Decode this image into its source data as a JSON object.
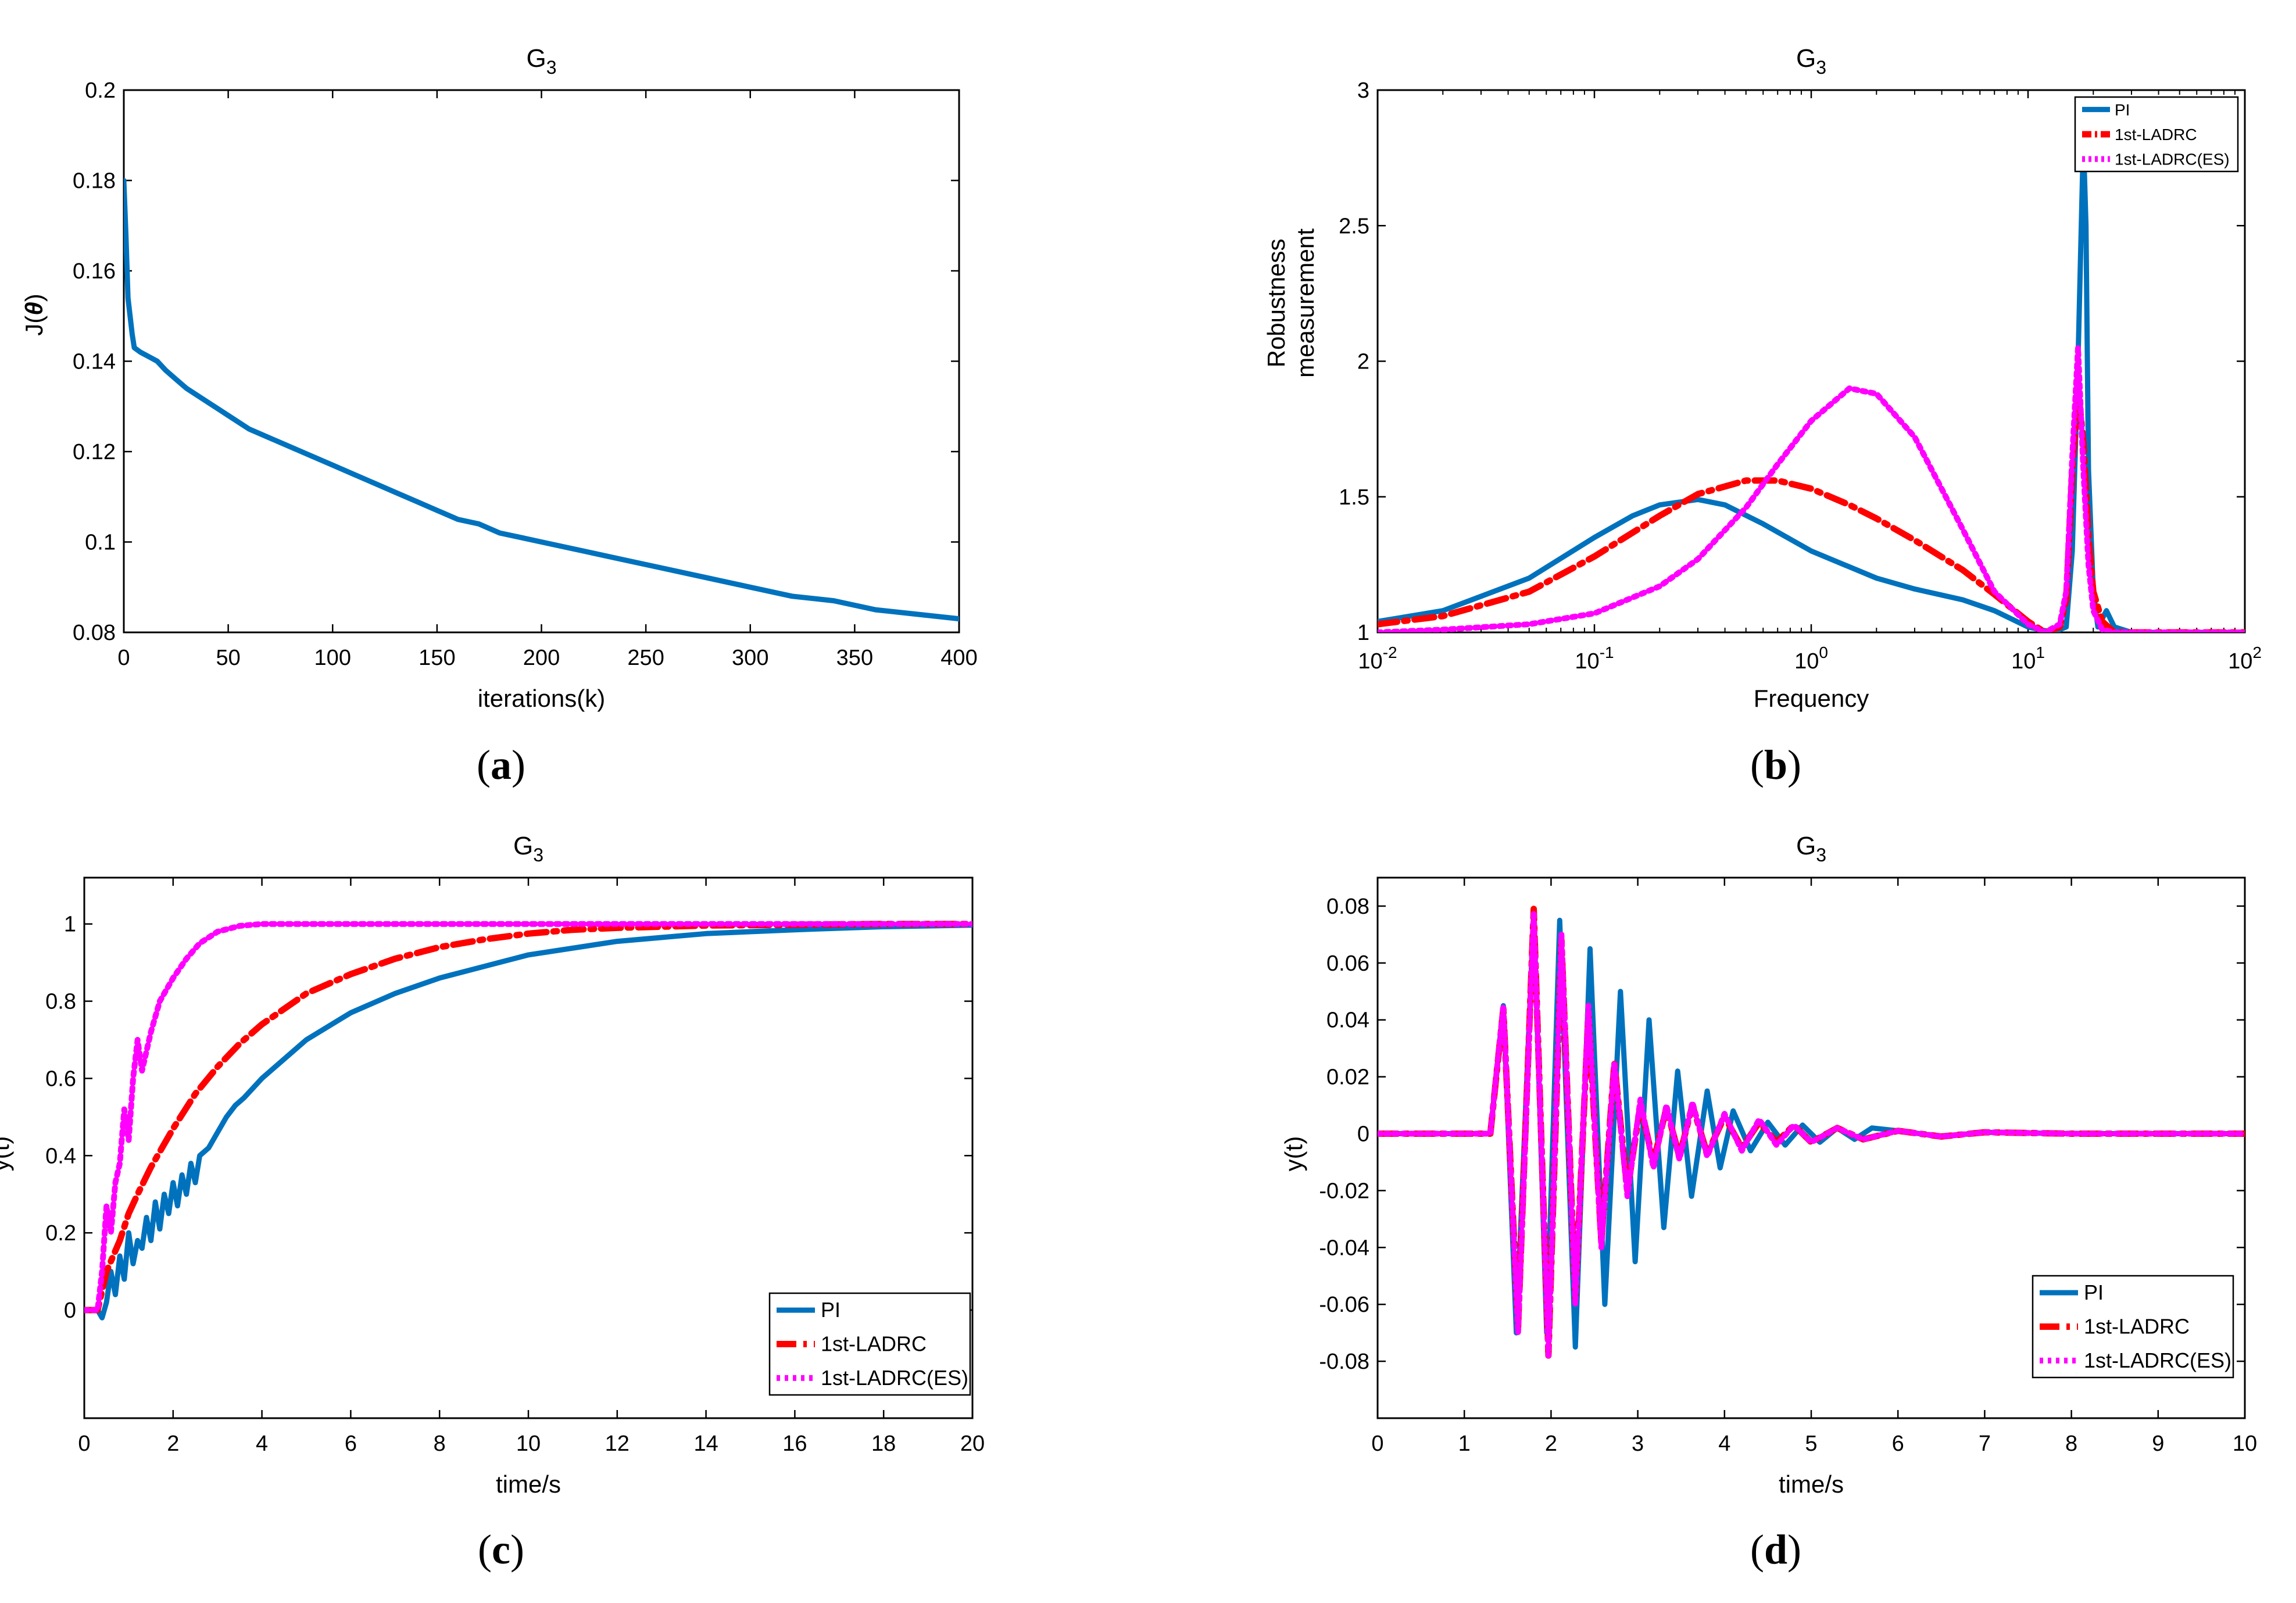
{
  "colors": {
    "pi": "#0072BD",
    "ladrc": "#FF0000",
    "es": "#FF00FF"
  },
  "chart_data": [
    {
      "id": "a",
      "type": "line",
      "caption_letter": "a",
      "title_main": "G",
      "title_sub": "3",
      "xlabel": "iterations(k)",
      "ylabel_prefix": "J(",
      "ylabel_theta": "θ",
      "ylabel_suffix": ")",
      "xlim": [
        0,
        400
      ],
      "ylim": [
        0.08,
        0.2
      ],
      "xticks": [
        0,
        50,
        100,
        150,
        200,
        250,
        300,
        350,
        400
      ],
      "xtick_labels": [
        "0",
        "50",
        "100",
        "150",
        "200",
        "250",
        "300",
        "350",
        "400"
      ],
      "yticks": [
        0.08,
        0.1,
        0.12,
        0.14,
        0.16,
        0.18,
        0.2
      ],
      "ytick_labels": [
        "0.08",
        "0.1",
        "0.12",
        "0.14",
        "0.16",
        "0.18",
        "0.2"
      ],
      "series": [
        {
          "name": "J",
          "color_key": "pi",
          "x": [
            0,
            1,
            2,
            3,
            4,
            5,
            8,
            12,
            16,
            20,
            25,
            30,
            40,
            50,
            60,
            70,
            80,
            90,
            100,
            110,
            120,
            130,
            140,
            150,
            160,
            170,
            180,
            190,
            200,
            220,
            240,
            260,
            280,
            300,
            320,
            340,
            360,
            380,
            400
          ],
          "y": [
            0.18,
            0.168,
            0.154,
            0.15,
            0.146,
            0.143,
            0.142,
            0.141,
            0.14,
            0.138,
            0.136,
            0.134,
            0.131,
            0.128,
            0.125,
            0.123,
            0.121,
            0.119,
            0.117,
            0.115,
            0.113,
            0.111,
            0.109,
            0.107,
            0.105,
            0.104,
            0.102,
            0.101,
            0.1,
            0.098,
            0.096,
            0.094,
            0.092,
            0.09,
            0.088,
            0.087,
            0.085,
            0.084,
            0.083
          ]
        }
      ]
    },
    {
      "id": "b",
      "type": "line",
      "caption_letter": "b",
      "title_main": "G",
      "title_sub": "3",
      "xlabel": "Frequency",
      "ylabel_lines": [
        "Robustness",
        "measurement"
      ],
      "xscale": "log",
      "xlim": [
        0.01,
        100
      ],
      "ylim": [
        1,
        3
      ],
      "xticks": [
        0.01,
        0.1,
        1,
        10,
        100
      ],
      "xtick_base": "10",
      "xtick_exps": [
        "-2",
        "-1",
        "0",
        "1",
        "2"
      ],
      "yticks": [
        1,
        1.5,
        2,
        2.5,
        3
      ],
      "ytick_labels": [
        "1",
        "1.5",
        "2",
        "2.5",
        "3"
      ],
      "legend": {
        "position": "top-right",
        "entries": [
          "PI",
          "1st-LADRC",
          "1st-LADRC(ES)"
        ]
      },
      "series": [
        {
          "name": "PI",
          "color_key": "pi",
          "dash": "solid",
          "x": [
            0.01,
            0.02,
            0.05,
            0.1,
            0.15,
            0.2,
            0.3,
            0.4,
            0.6,
            1,
            2,
            3,
            5,
            7,
            10,
            13,
            15,
            16,
            17,
            18,
            18.5,
            19,
            20,
            21,
            23,
            25,
            30,
            40,
            50,
            100
          ],
          "y": [
            1.04,
            1.08,
            1.2,
            1.35,
            1.43,
            1.47,
            1.49,
            1.47,
            1.4,
            1.3,
            1.2,
            1.16,
            1.12,
            1.08,
            1.02,
            1.0,
            1.02,
            1.3,
            2.0,
            2.82,
            2.5,
            1.6,
            1.15,
            1.02,
            1.08,
            1.02,
            1.0,
            1.0,
            1.0,
            1.0
          ]
        },
        {
          "name": "1st-LADRC",
          "color_key": "ladrc",
          "dash": "dashdot",
          "x": [
            0.01,
            0.02,
            0.05,
            0.1,
            0.2,
            0.3,
            0.5,
            0.7,
            1,
            1.5,
            2,
            3,
            5,
            7,
            10,
            12,
            14,
            15,
            16,
            17,
            18,
            19,
            20,
            22,
            25,
            30,
            50,
            100
          ],
          "y": [
            1.03,
            1.06,
            1.15,
            1.28,
            1.43,
            1.51,
            1.56,
            1.56,
            1.53,
            1.47,
            1.42,
            1.34,
            1.23,
            1.14,
            1.04,
            1.0,
            1.02,
            1.12,
            1.6,
            1.9,
            1.7,
            1.35,
            1.15,
            1.04,
            1.0,
            1.0,
            1.0,
            1.0
          ]
        },
        {
          "name": "1st-LADRC(ES)",
          "color_key": "es",
          "dash": "dotted",
          "x": [
            0.01,
            0.02,
            0.05,
            0.1,
            0.2,
            0.3,
            0.5,
            0.7,
            1,
            1.5,
            2,
            3,
            5,
            7,
            10,
            12,
            14,
            15,
            16,
            17,
            18,
            19,
            20,
            22,
            25,
            30,
            50,
            100
          ],
          "y": [
            1.0,
            1.01,
            1.03,
            1.07,
            1.17,
            1.27,
            1.46,
            1.62,
            1.78,
            1.9,
            1.88,
            1.72,
            1.38,
            1.15,
            1.03,
            1.0,
            1.03,
            1.15,
            1.65,
            2.05,
            1.6,
            1.25,
            1.08,
            1.01,
            1.0,
            1.0,
            1.0,
            1.0
          ]
        }
      ]
    },
    {
      "id": "c",
      "type": "line",
      "caption_letter": "c",
      "title_main": "G",
      "title_sub": "3",
      "xlabel": "time/s",
      "ylabel": "y(t)",
      "xlim": [
        0,
        20
      ],
      "ylim": [
        -0.28,
        1.12
      ],
      "xticks": [
        0,
        2,
        4,
        6,
        8,
        10,
        12,
        14,
        16,
        18,
        20
      ],
      "xtick_labels": [
        "0",
        "2",
        "4",
        "6",
        "8",
        "10",
        "12",
        "14",
        "16",
        "18",
        "20"
      ],
      "yticks": [
        0,
        0.2,
        0.4,
        0.6,
        0.8,
        1
      ],
      "ytick_labels": [
        "0",
        "0.2",
        "0.4",
        "0.6",
        "0.8",
        "1"
      ],
      "legend": {
        "position": "bottom-right",
        "entries": [
          "PI",
          "1st-LADRC",
          "1st-LADRC(ES)"
        ]
      },
      "series": [
        {
          "name": "PI",
          "color_key": "pi",
          "dash": "solid",
          "x": [
            0,
            0.3,
            0.4,
            0.5,
            0.6,
            0.7,
            0.8,
            0.9,
            1.0,
            1.1,
            1.2,
            1.3,
            1.4,
            1.5,
            1.6,
            1.7,
            1.8,
            1.9,
            2.0,
            2.1,
            2.2,
            2.3,
            2.4,
            2.5,
            2.6,
            2.8,
            3.0,
            3.2,
            3.4,
            3.6,
            4.0,
            5,
            6,
            7,
            8,
            9,
            10,
            12,
            14,
            16,
            18,
            20
          ],
          "y": [
            0,
            0,
            -0.02,
            0.02,
            0.1,
            0.04,
            0.14,
            0.08,
            0.2,
            0.12,
            0.18,
            0.16,
            0.24,
            0.18,
            0.28,
            0.21,
            0.3,
            0.25,
            0.33,
            0.27,
            0.35,
            0.3,
            0.38,
            0.33,
            0.4,
            0.42,
            0.46,
            0.5,
            0.53,
            0.55,
            0.6,
            0.7,
            0.77,
            0.82,
            0.86,
            0.89,
            0.92,
            0.955,
            0.975,
            0.985,
            0.993,
            0.997
          ]
        },
        {
          "name": "1st-LADRC",
          "color_key": "ladrc",
          "dash": "dashdot",
          "x": [
            0,
            0.3,
            0.5,
            0.8,
            1.0,
            1.2,
            1.5,
            2,
            2.5,
            3,
            3.5,
            4,
            5,
            6,
            7,
            8,
            9,
            10,
            11,
            12,
            14,
            16,
            18,
            20
          ],
          "y": [
            0,
            0,
            0.1,
            0.18,
            0.25,
            0.3,
            0.37,
            0.47,
            0.56,
            0.63,
            0.69,
            0.74,
            0.82,
            0.87,
            0.91,
            0.94,
            0.96,
            0.975,
            0.985,
            0.99,
            0.996,
            0.998,
            1.0,
            1.0
          ]
        },
        {
          "name": "1st-LADRC(ES)",
          "color_key": "es",
          "dash": "dotted",
          "x": [
            0,
            0.3,
            0.4,
            0.5,
            0.6,
            0.7,
            0.8,
            0.9,
            1.0,
            1.1,
            1.2,
            1.3,
            1.5,
            1.7,
            2.0,
            2.3,
            2.6,
            3.0,
            3.5,
            4.0,
            5,
            6,
            8,
            10,
            15,
            20
          ],
          "y": [
            0,
            0,
            0.1,
            0.27,
            0.2,
            0.33,
            0.38,
            0.52,
            0.44,
            0.6,
            0.7,
            0.62,
            0.72,
            0.8,
            0.86,
            0.91,
            0.95,
            0.98,
            0.995,
            1.0,
            1.0,
            1.0,
            1.0,
            1.0,
            1.0,
            1.0
          ]
        }
      ]
    },
    {
      "id": "d",
      "type": "line",
      "caption_letter": "d",
      "title_main": "G",
      "title_sub": "3",
      "xlabel": "time/s",
      "ylabel": "y(t)",
      "xlim": [
        0,
        10
      ],
      "ylim": [
        -0.1,
        0.09
      ],
      "xticks": [
        0,
        1,
        2,
        3,
        4,
        5,
        6,
        7,
        8,
        9,
        10
      ],
      "xtick_labels": [
        "0",
        "1",
        "2",
        "3",
        "4",
        "5",
        "6",
        "7",
        "8",
        "9",
        "10"
      ],
      "yticks": [
        -0.08,
        -0.06,
        -0.04,
        -0.02,
        0,
        0.02,
        0.04,
        0.06,
        0.08
      ],
      "ytick_labels": [
        "-0.08",
        "-0.06",
        "-0.04",
        "-0.02",
        "0",
        "0.02",
        "0.04",
        "0.06",
        "0.08"
      ],
      "legend": {
        "position": "bottom-right",
        "entries": [
          "PI",
          "1st-LADRC",
          "1st-LADRC(ES)"
        ]
      },
      "series": [
        {
          "name": "PI",
          "color_key": "pi",
          "dash": "solid",
          "x": [
            0,
            1.25,
            1.3,
            1.45,
            1.6,
            1.8,
            1.95,
            2.1,
            2.28,
            2.45,
            2.62,
            2.8,
            2.97,
            3.13,
            3.3,
            3.46,
            3.62,
            3.8,
            3.95,
            4.1,
            4.3,
            4.5,
            4.7,
            4.9,
            5.1,
            5.3,
            5.5,
            5.7,
            6,
            6.5,
            7,
            8,
            10
          ],
          "y": [
            0,
            0,
            0,
            0.045,
            -0.07,
            0.078,
            -0.07,
            0.075,
            -0.075,
            0.065,
            -0.06,
            0.05,
            -0.045,
            0.04,
            -0.033,
            0.022,
            -0.022,
            0.015,
            -0.012,
            0.008,
            -0.006,
            0.004,
            -0.004,
            0.003,
            -0.003,
            0.002,
            -0.002,
            0.002,
            0.001,
            -0.001,
            0.0005,
            0,
            0
          ]
        },
        {
          "name": "1st-LADRC",
          "color_key": "ladrc",
          "dash": "dashdot",
          "x": [
            0,
            1.25,
            1.3,
            1.45,
            1.62,
            1.8,
            1.97,
            2.12,
            2.28,
            2.43,
            2.58,
            2.73,
            2.88,
            3.03,
            3.18,
            3.33,
            3.48,
            3.63,
            3.8,
            4.0,
            4.2,
            4.4,
            4.6,
            4.8,
            5.0,
            5.3,
            5.6,
            6.0,
            6.5,
            7,
            8,
            10
          ],
          "y": [
            0,
            0,
            0,
            0.044,
            -0.068,
            0.079,
            -0.078,
            0.068,
            -0.058,
            0.042,
            -0.038,
            0.025,
            -0.02,
            0.01,
            -0.01,
            0.009,
            -0.008,
            0.01,
            -0.007,
            0.006,
            -0.005,
            0.004,
            -0.003,
            0.003,
            -0.003,
            0.002,
            -0.002,
            0.001,
            -0.001,
            0.0005,
            0,
            0
          ]
        },
        {
          "name": "1st-LADRC(ES)",
          "color_key": "es",
          "dash": "dotted",
          "x": [
            0,
            1.25,
            1.3,
            1.45,
            1.62,
            1.8,
            1.97,
            2.12,
            2.28,
            2.43,
            2.58,
            2.73,
            2.88,
            3.03,
            3.18,
            3.33,
            3.48,
            3.63,
            3.8,
            4.0,
            4.2,
            4.4,
            4.6,
            4.8,
            5.0,
            5.3,
            5.6,
            6.0,
            6.5,
            7,
            8,
            10
          ],
          "y": [
            0,
            0,
            0,
            0.045,
            -0.07,
            0.078,
            -0.078,
            0.07,
            -0.06,
            0.045,
            -0.04,
            0.025,
            -0.022,
            0.012,
            -0.012,
            0.01,
            -0.009,
            0.011,
            -0.008,
            0.007,
            -0.006,
            0.005,
            -0.004,
            0.003,
            -0.003,
            0.002,
            -0.002,
            0.001,
            -0.001,
            0.0005,
            0,
            0
          ]
        }
      ]
    }
  ]
}
